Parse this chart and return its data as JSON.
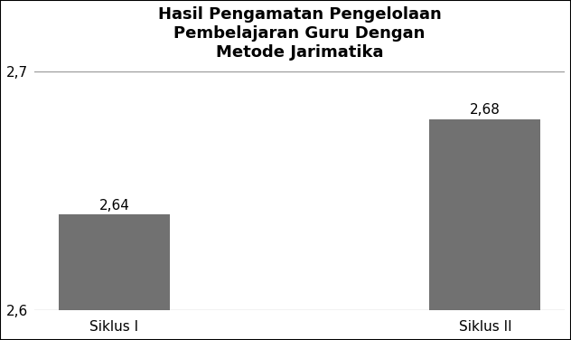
{
  "title_line1": "Hasil Pengamatan Pengelolaan",
  "title_line2": "Pembelajaran Guru Dengan",
  "title_line3": "Metode Jarimatika",
  "categories": [
    "Siklus I",
    "Siklus II"
  ],
  "values": [
    2.64,
    2.68
  ],
  "bar_color": "#717171",
  "ylim_min": 2.6,
  "ylim_max": 2.7,
  "yticks": [
    2.6,
    2.7
  ],
  "ytick_labels": [
    "2,6",
    "2,7"
  ],
  "value_labels": [
    "2,64",
    "2,68"
  ],
  "background_color": "#ffffff",
  "title_fontsize": 13,
  "tick_fontsize": 11,
  "label_fontsize": 11,
  "value_fontsize": 11,
  "bar_width": 0.3
}
